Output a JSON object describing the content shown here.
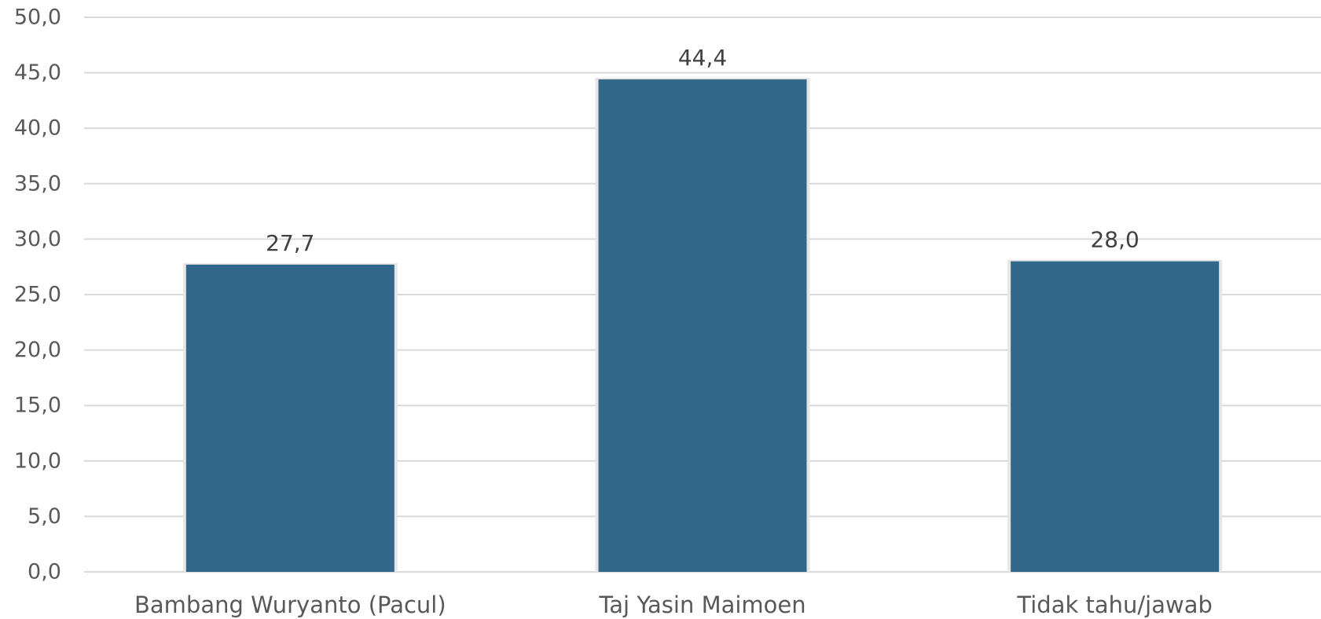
{
  "chart_data": {
    "type": "bar",
    "categories": [
      "Bambang Wuryanto (Pacul)",
      "Taj Yasin Maimoen",
      "Tidak tahu/jawab"
    ],
    "values": [
      27.7,
      44.4,
      28.0
    ],
    "data_labels": [
      "27,7",
      "44,4",
      "28,0"
    ],
    "title": "",
    "xlabel": "",
    "ylabel": "",
    "ylim": [
      0,
      50
    ],
    "y_ticks": [
      0,
      5,
      10,
      15,
      20,
      25,
      30,
      35,
      40,
      45,
      50
    ],
    "y_tick_labels": [
      "0,0",
      "5,0",
      "10,0",
      "15,0",
      "20,0",
      "25,0",
      "30,0",
      "35,0",
      "40,0",
      "45,0",
      "50,0"
    ],
    "grid": true,
    "legend": "none",
    "bar_color": "#31688a",
    "grid_color": "#d9d9d9"
  }
}
